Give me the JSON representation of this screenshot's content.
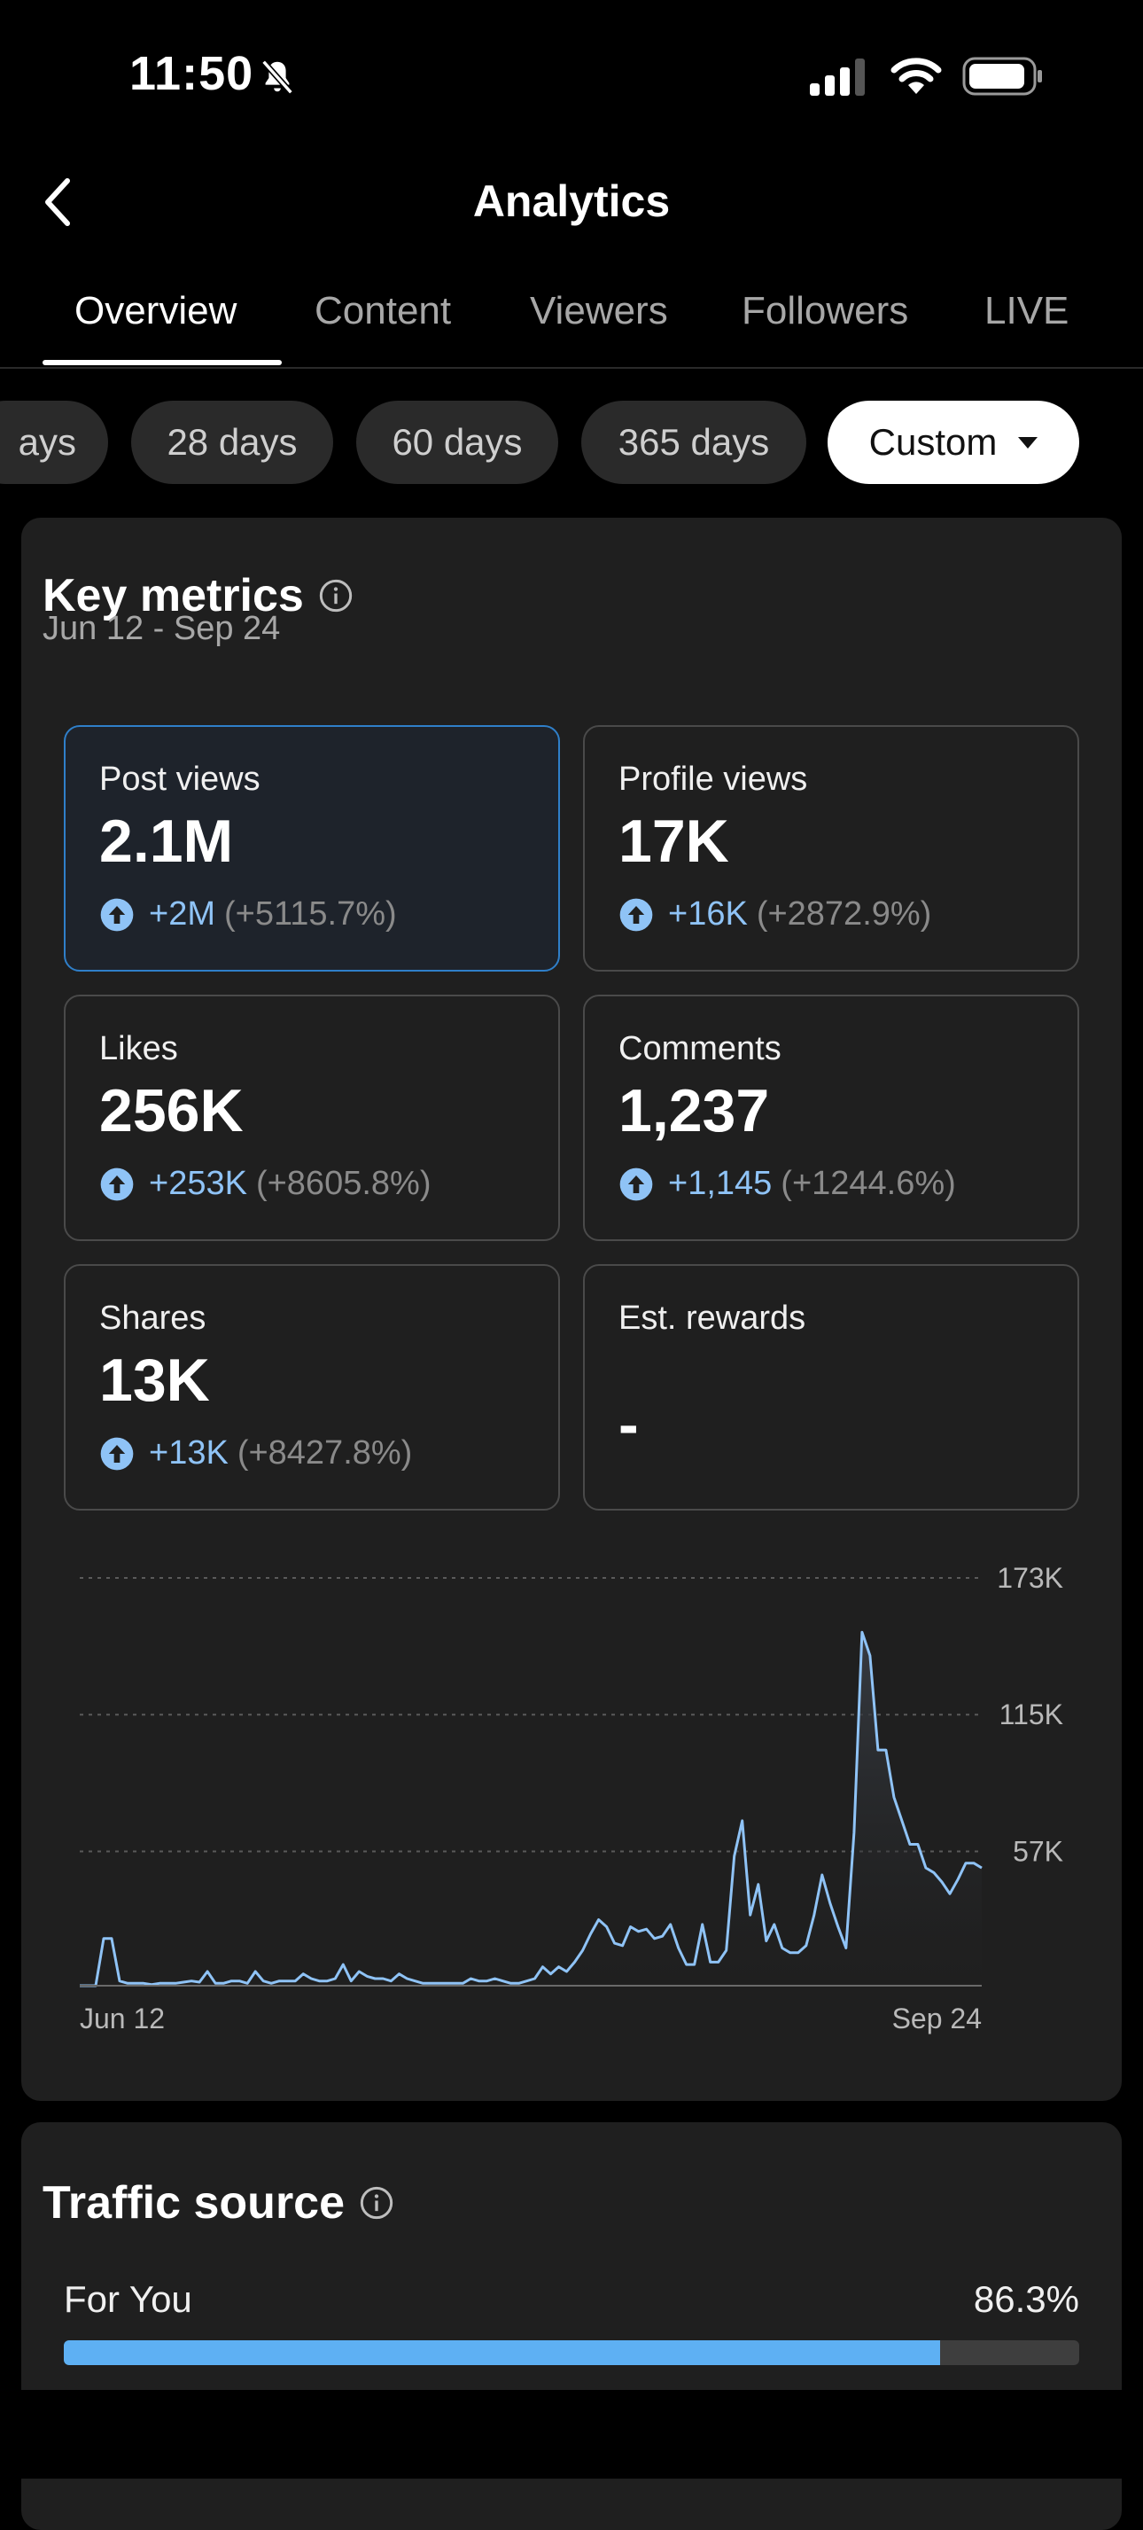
{
  "status_bar": {
    "time": "11:50"
  },
  "header": {
    "title": "Analytics",
    "back_icon": "chevron-left-icon"
  },
  "tabs": [
    {
      "label": "Overview",
      "active": true
    },
    {
      "label": "Content",
      "active": false
    },
    {
      "label": "Viewers",
      "active": false
    },
    {
      "label": "Followers",
      "active": false
    },
    {
      "label": "LIVE",
      "active": false
    }
  ],
  "date_filters": [
    {
      "label": "ays",
      "selected": false
    },
    {
      "label": "28 days",
      "selected": false
    },
    {
      "label": "60 days",
      "selected": false
    },
    {
      "label": "365 days",
      "selected": false
    },
    {
      "label": "Custom",
      "selected": true
    }
  ],
  "key_metrics": {
    "title": "Key metrics",
    "date_range": "Jun 12 - Sep 24",
    "metrics": [
      {
        "label": "Post views",
        "value": "2.1M",
        "delta": "+2M",
        "pct": "(+5115.7%)",
        "selected": true
      },
      {
        "label": "Profile views",
        "value": "17K",
        "delta": "+16K",
        "pct": "(+2872.9%)"
      },
      {
        "label": "Likes",
        "value": "256K",
        "delta": "+253K",
        "pct": "(+8605.8%)"
      },
      {
        "label": "Comments",
        "value": "1,237",
        "delta": "+1,145",
        "pct": "(+1244.6%)"
      },
      {
        "label": "Shares",
        "value": "13K",
        "delta": "+13K",
        "pct": "(+8427.8%)"
      },
      {
        "label": "Est. rewards",
        "value": "-"
      }
    ]
  },
  "chart_data": {
    "type": "area",
    "x_start_label": "Jun 12",
    "x_end_label": "Sep 24",
    "ytick_labels": [
      "173K",
      "115K",
      "57K"
    ],
    "yticks": [
      173000,
      115000,
      57000
    ],
    "ylim": [
      0,
      173000
    ],
    "grid": true,
    "line_color": "#8fc3f6",
    "values": [
      0,
      0,
      0,
      20000,
      20000,
      2000,
      1000,
      1000,
      1000,
      500,
      1000,
      1000,
      1000,
      1500,
      2000,
      1500,
      6000,
      1000,
      1000,
      2000,
      2000,
      1000,
      6000,
      2000,
      1000,
      2000,
      2000,
      2000,
      5000,
      3000,
      2000,
      2000,
      3000,
      9000,
      2000,
      6000,
      4000,
      3000,
      3000,
      2000,
      5000,
      3000,
      2000,
      1000,
      1000,
      1000,
      1000,
      1000,
      1000,
      3000,
      2000,
      2000,
      3000,
      2000,
      1000,
      1000,
      2000,
      3000,
      8000,
      5000,
      8000,
      6000,
      10000,
      15000,
      22000,
      28000,
      25000,
      18000,
      17000,
      25000,
      23000,
      24000,
      20000,
      21000,
      26000,
      16000,
      9000,
      9000,
      26000,
      10000,
      10000,
      15000,
      55000,
      70000,
      30000,
      43000,
      19000,
      26000,
      16000,
      14000,
      14000,
      17000,
      30000,
      47000,
      35000,
      25000,
      16000,
      65000,
      150000,
      140000,
      100000,
      100000,
      80000,
      70000,
      60000,
      60000,
      50000,
      48000,
      44000,
      39000,
      45000,
      52000,
      52000,
      50000
    ]
  },
  "traffic_source": {
    "title": "Traffic source",
    "items": [
      {
        "label": "For You",
        "value": "86.3%",
        "fraction": 0.863
      }
    ]
  }
}
